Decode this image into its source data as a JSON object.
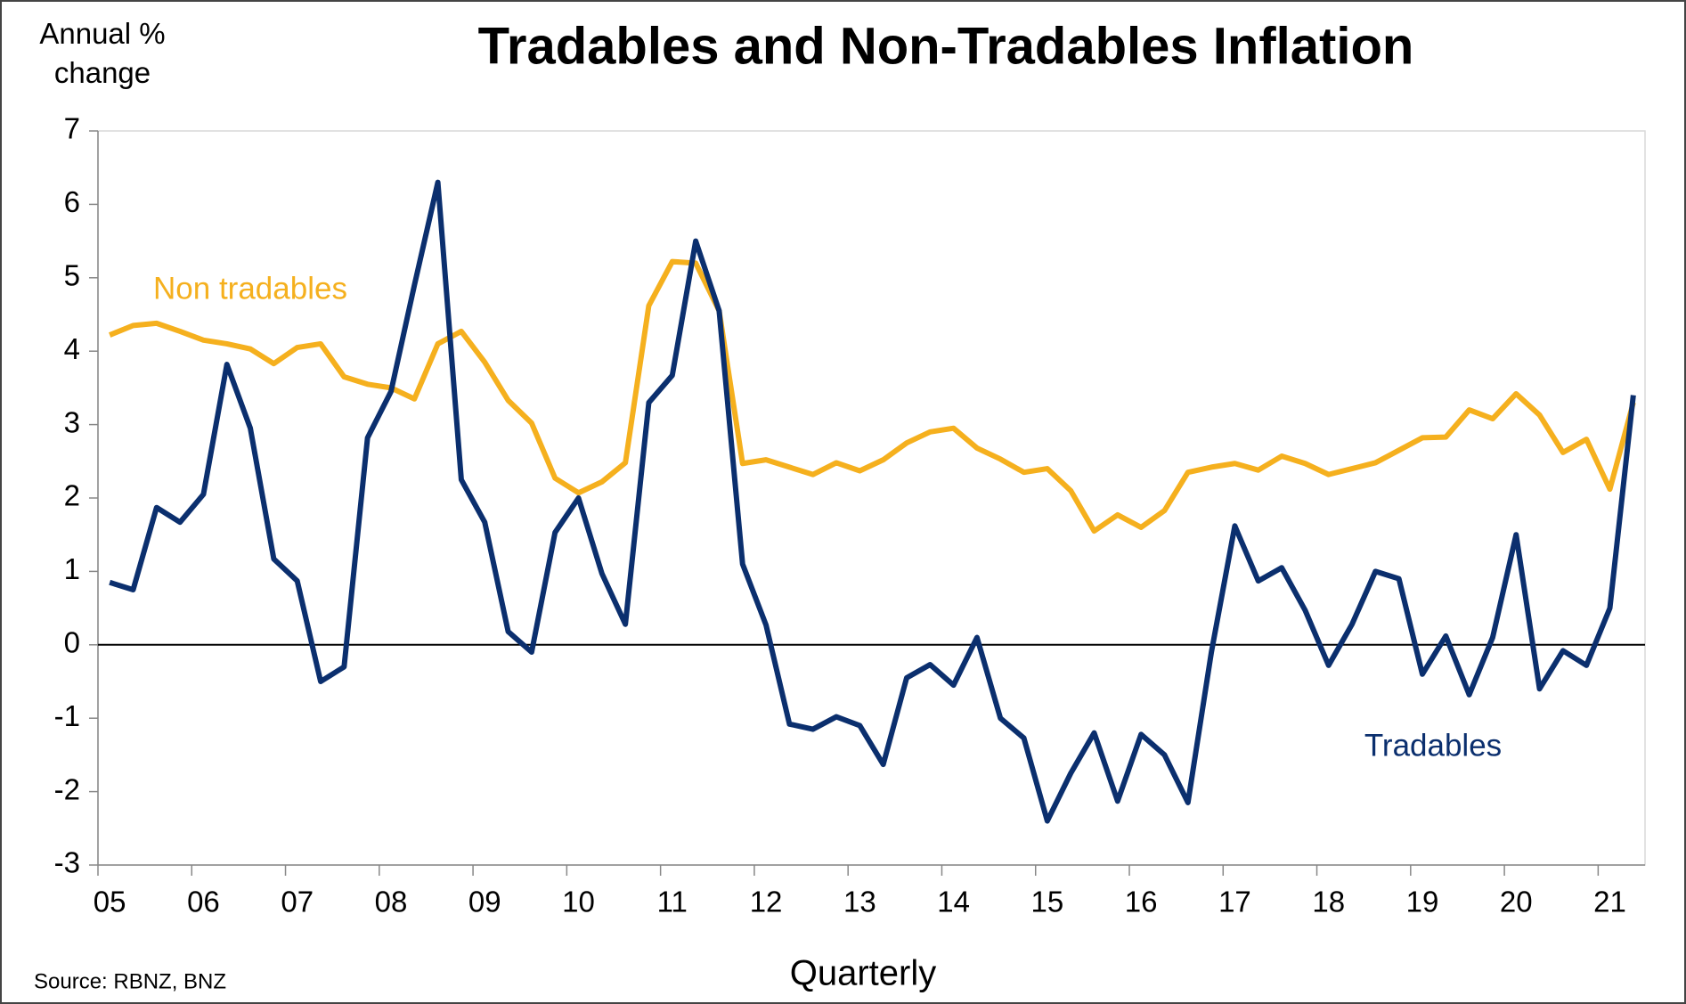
{
  "chart_data": {
    "type": "line",
    "title": "Tradables and Non-Tradables Inflation",
    "y_axis_label": "Annual % change",
    "x_axis_label": "Quarterly",
    "source": "Source: RBNZ, BNZ",
    "categories": [
      "05",
      null,
      null,
      null,
      "06",
      null,
      null,
      null,
      "07",
      null,
      null,
      null,
      "08",
      null,
      null,
      null,
      "09",
      null,
      null,
      null,
      "10",
      null,
      null,
      null,
      "11",
      null,
      null,
      null,
      "12",
      null,
      null,
      null,
      "13",
      null,
      null,
      null,
      "14",
      null,
      null,
      null,
      "15",
      null,
      null,
      null,
      "16",
      null,
      null,
      null,
      "17",
      null,
      null,
      null,
      "18",
      null,
      null,
      null,
      "19",
      null,
      null,
      null,
      "20",
      null,
      null,
      null,
      "21",
      null
    ],
    "series": [
      {
        "name": "Non tradables",
        "color": "#f5b01e",
        "values": [
          4.22,
          4.35,
          4.38,
          4.27,
          4.15,
          4.1,
          4.03,
          3.83,
          4.05,
          4.1,
          3.65,
          3.55,
          3.5,
          3.35,
          4.1,
          4.27,
          3.85,
          3.33,
          3.02,
          2.27,
          2.07,
          2.22,
          2.48,
          4.62,
          5.22,
          5.2,
          4.55,
          2.47,
          2.52,
          2.42,
          2.32,
          2.48,
          2.37,
          2.52,
          2.75,
          2.9,
          2.95,
          2.68,
          2.53,
          2.35,
          2.4,
          2.1,
          1.55,
          1.77,
          1.6,
          1.83,
          2.35,
          2.42,
          2.47,
          2.38,
          2.57,
          2.47,
          2.32,
          2.4,
          2.48,
          2.65,
          2.82,
          2.83,
          3.2,
          3.08,
          3.42,
          3.13,
          2.62,
          2.8,
          2.12,
          3.3
        ]
      },
      {
        "name": "Tradables",
        "color": "#0b2f6e",
        "values": [
          0.85,
          0.75,
          1.87,
          1.67,
          2.05,
          3.82,
          2.95,
          1.17,
          0.87,
          -0.5,
          -0.3,
          2.82,
          3.45,
          4.9,
          6.3,
          2.25,
          1.67,
          0.18,
          -0.1,
          1.53,
          2.0,
          0.97,
          0.28,
          3.3,
          3.67,
          5.5,
          4.55,
          1.1,
          0.27,
          -1.08,
          -1.15,
          -0.98,
          -1.1,
          -1.63,
          -0.45,
          -0.27,
          -0.55,
          0.1,
          -1.0,
          -1.27,
          -2.4,
          -1.75,
          -1.2,
          -2.13,
          -1.22,
          -1.5,
          -2.15,
          -0.1,
          1.62,
          0.87,
          1.05,
          0.47,
          -0.28,
          0.28,
          1.0,
          0.9,
          -0.4,
          0.12,
          -0.68,
          0.1,
          1.5,
          -0.6,
          -0.08,
          -0.28,
          0.5,
          3.4
        ]
      }
    ],
    "ylim": [
      -3,
      7
    ],
    "yticks": [
      -3,
      -2,
      -1,
      0,
      1,
      2,
      3,
      4,
      5,
      6,
      7
    ],
    "zero_line": true
  }
}
